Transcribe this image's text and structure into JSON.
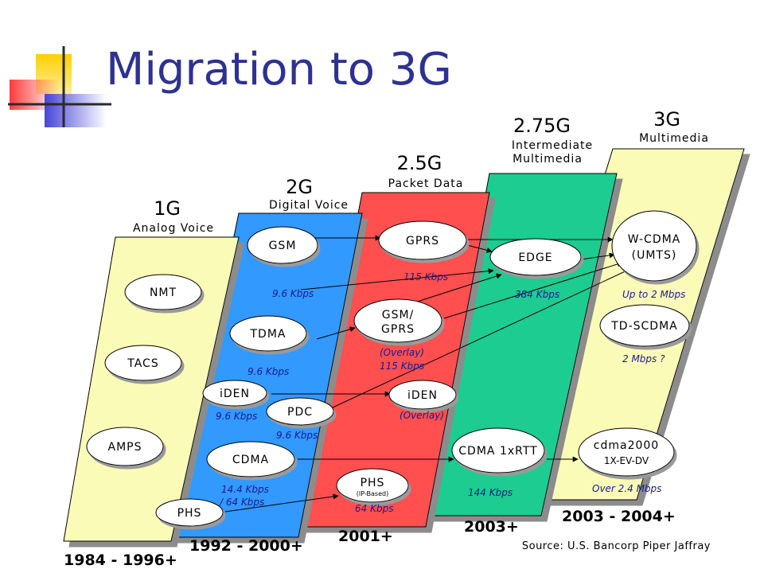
{
  "slide": {
    "title": "Migration to 3G",
    "source": "Source: U.S. Bancorp Piper Jaffray"
  },
  "generations": {
    "g1": {
      "name": "1G",
      "subtitle": "Analog Voice",
      "years": "1984 - 1996+"
    },
    "g2": {
      "name": "2G",
      "subtitle": "Digital Voice",
      "years": "1992 - 2000+"
    },
    "g25": {
      "name": "2.5G",
      "subtitle": "Packet Data",
      "years": "2001+"
    },
    "g275": {
      "name": "2.75G",
      "subtitle_line1": "Intermediate",
      "subtitle_line2": "Multimedia",
      "years": "2003+"
    },
    "g3": {
      "name": "3G",
      "subtitle": "Multimedia",
      "years": "2003 - 2004+"
    }
  },
  "nodes": {
    "nmt": "NMT",
    "tacs": "TACS",
    "amps": "AMPS",
    "gsm": "GSM",
    "tdma": "TDMA",
    "iden_2g": "iDEN",
    "pdc": "PDC",
    "cdma": "CDMA",
    "phs_2g": "PHS",
    "gprs": "GPRS",
    "gsm_gprs_line1": "GSM/",
    "gsm_gprs_line2": "GPRS",
    "iden_25g": "iDEN",
    "phs_25g": "PHS",
    "phs_25g_sub": "(IP-Based)",
    "edge": "EDGE",
    "cdma_1xrtt": "CDMA 1xRTT",
    "wcdma_line1": "W-CDMA",
    "wcdma_line2": "(UMTS)",
    "tdscdma": "TD-SCDMA",
    "cdma2000_line1": "cdma2000",
    "cdma2000_line2": "1X-EV-DV"
  },
  "speeds": {
    "gsm": "9.6 Kbps",
    "tdma": "9.6 Kbps",
    "iden": "9.6 Kbps",
    "pdc": "9.6 Kbps",
    "cdma_line1": "14.4 Kbps",
    "cdma_line2": "/ 64 Kbps",
    "gprs": "115 Kbps",
    "gsm_gprs_line1": "(Overlay)",
    "gsm_gprs_line2": "115 Kbps",
    "iden_25g": "(Overlay)",
    "phs_25g": "64 Kbps",
    "edge": "384 Kbps",
    "cdma_1xrtt": "144 Kbps",
    "wcdma": "Up to 2 Mbps",
    "tdscdma": "2 Mbps ?",
    "cdma2000": "Over 2.4 Mbps"
  },
  "colors": {
    "title": "#2e3192",
    "g1_band": "#fbfbb8",
    "g2_band": "#3399ff",
    "g25_band": "#ff5050",
    "g275_band": "#1fcc90",
    "g3_band": "#fbfbb8",
    "speed_text": "#1a1a8c",
    "node_fill": "#ffffff"
  }
}
